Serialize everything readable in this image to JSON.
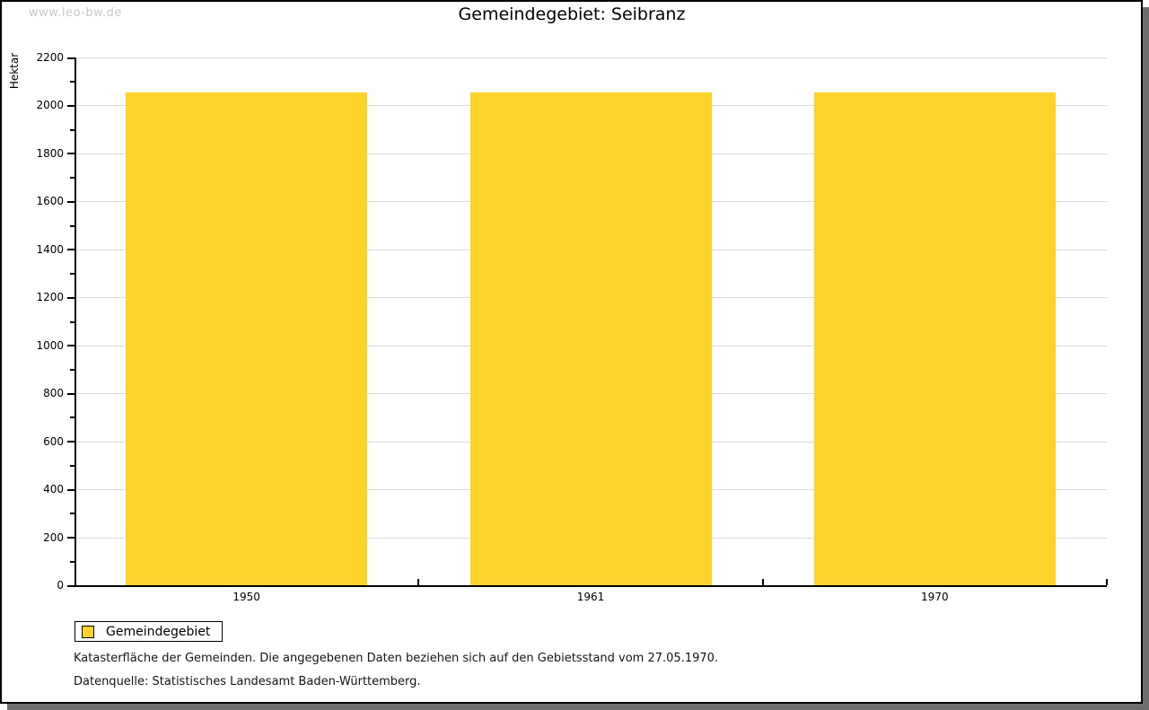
{
  "watermark": "www.leo-bw.de",
  "title": "Gemeindegebiet: Seibranz",
  "legend": {
    "label": "Gemeindegebiet"
  },
  "footnotes": {
    "line1": "Katasterfläche der Gemeinden. Die angegebenen Daten beziehen sich auf den Gebietsstand vom 27.05.1970.",
    "line2": "Datenquelle: Statistisches Landesamt Baden-Württemberg."
  },
  "colors": {
    "bar": "#FCD32B",
    "grid": "#DCDCDC",
    "axis": "#000000",
    "watermark": "#C8C8C8",
    "shadow": "#6E6E6E"
  },
  "chart_data": {
    "type": "bar",
    "title": "Gemeindegebiet: Seibranz",
    "xlabel": "",
    "ylabel": "Hektar",
    "categories": [
      "1950",
      "1961",
      "1970"
    ],
    "series": [
      {
        "name": "Gemeindegebiet",
        "color": "#FCD32B",
        "values": [
          2055,
          2055,
          2055
        ]
      }
    ],
    "ylim": [
      0,
      2200
    ],
    "y_major_step": 200,
    "y_minor_step": 100,
    "grid": true,
    "legend_position": "bottom-left",
    "unit": "Hektar"
  }
}
